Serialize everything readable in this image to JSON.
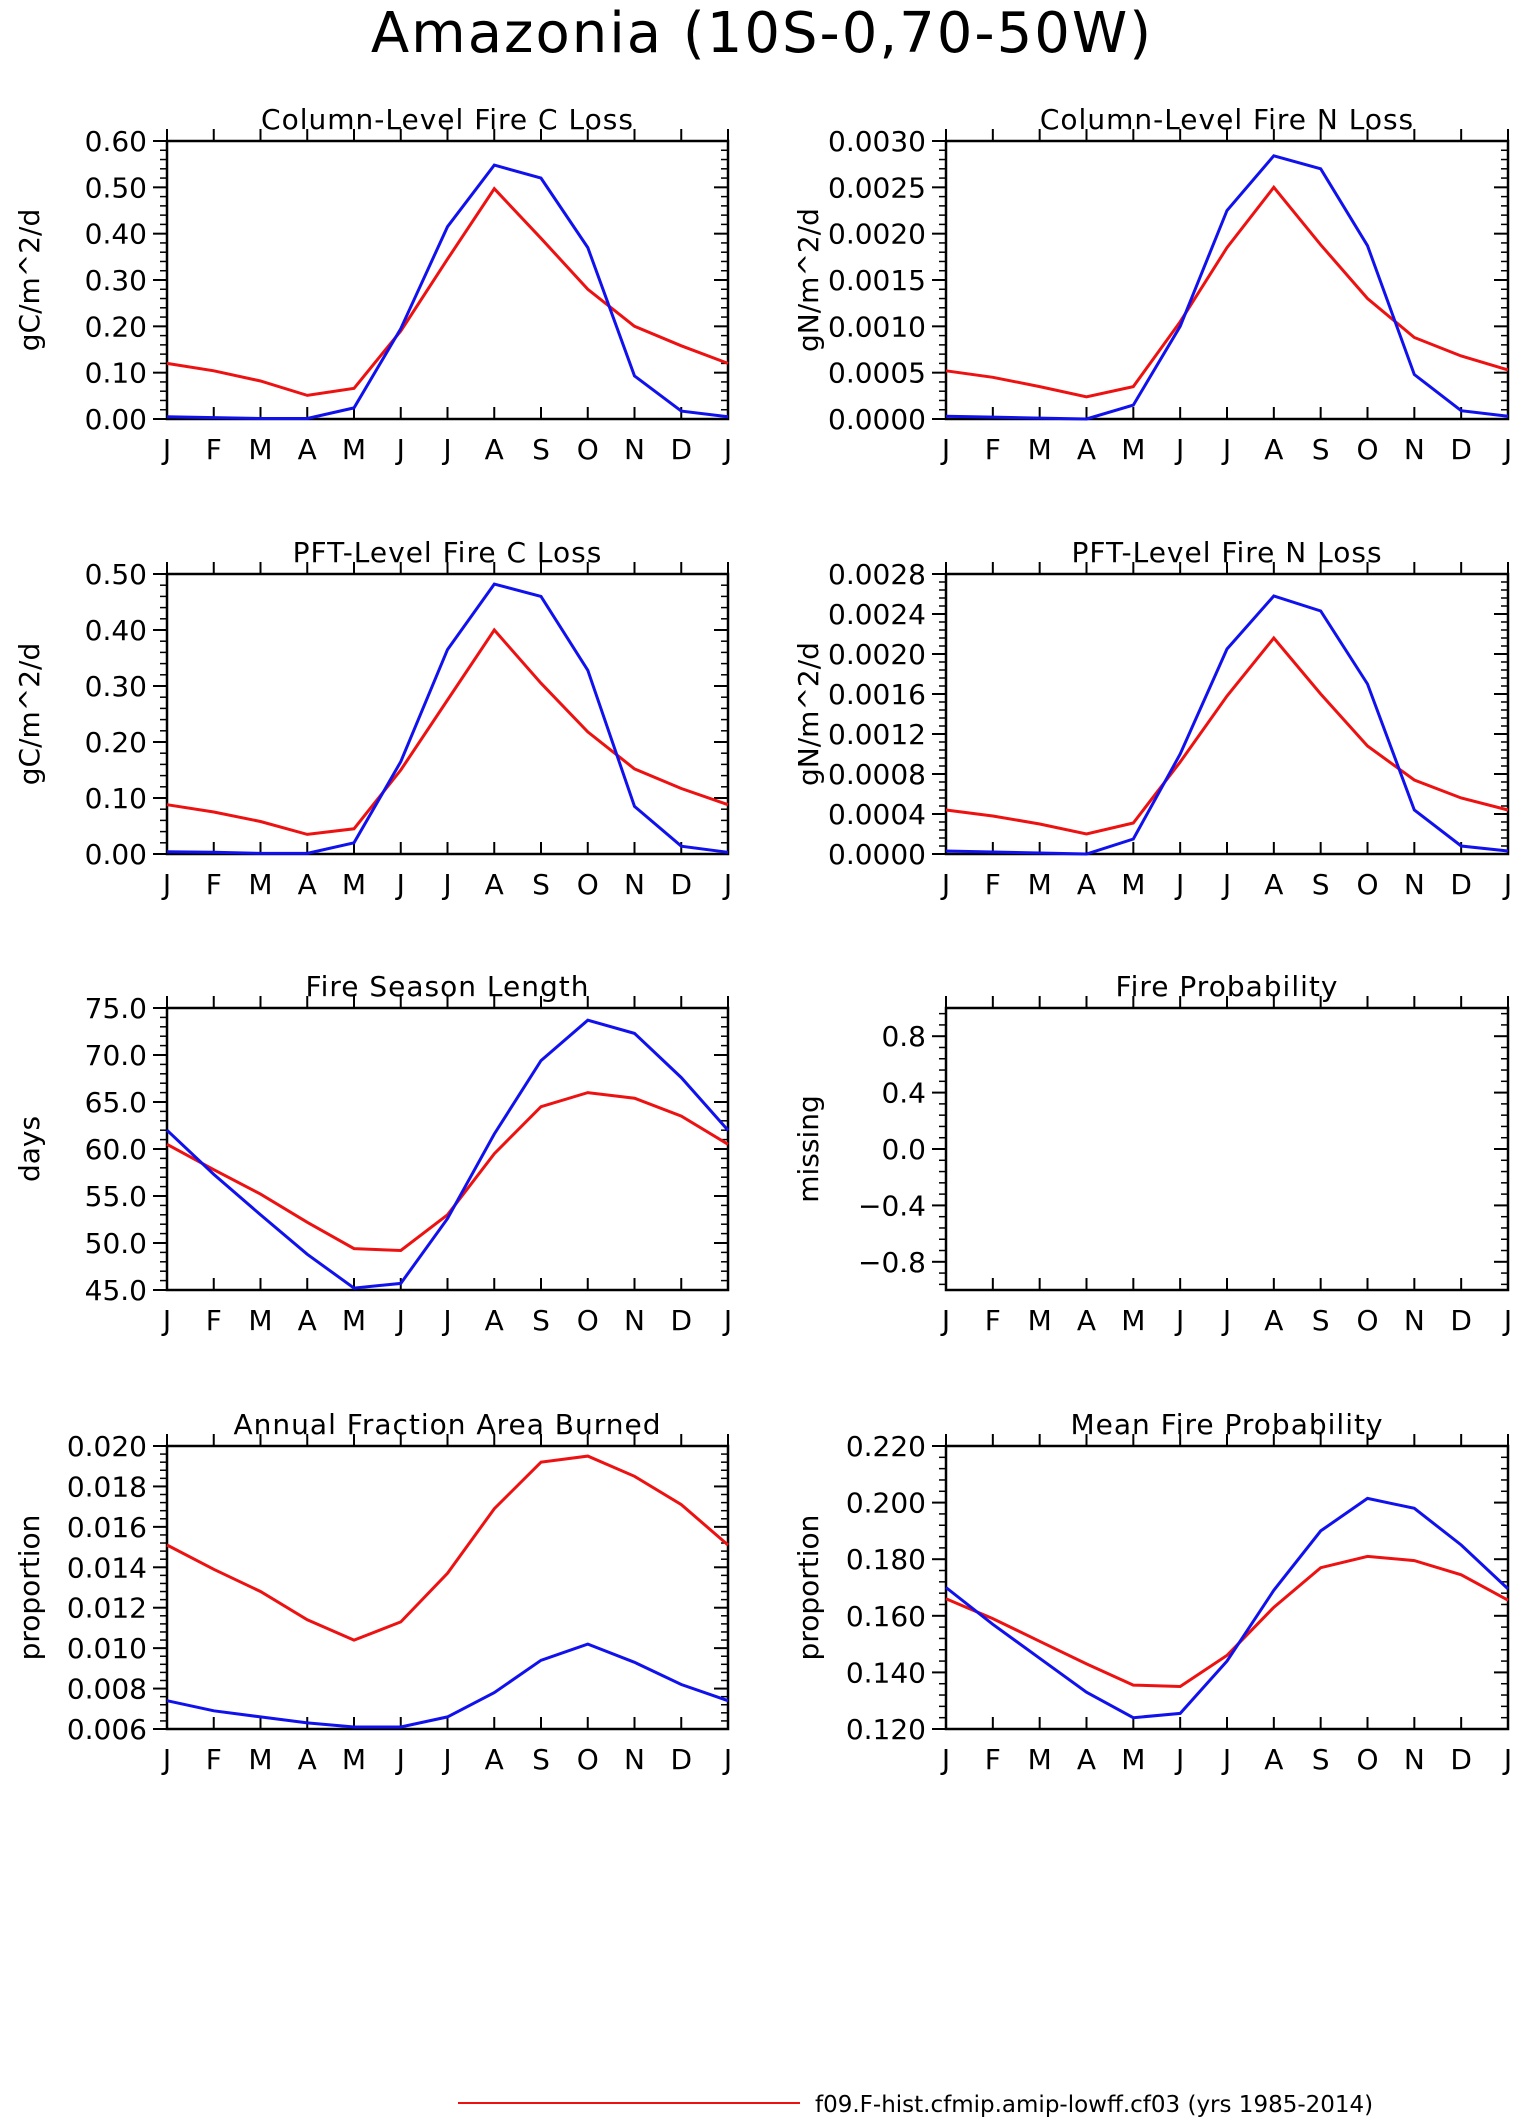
{
  "figure": {
    "title": "Amazonia (10S-0,70-50W)",
    "legend": [
      {
        "label": "f09.F-hist.cfmip.amip-lowff.cf03 (yrs 1985-2014)",
        "color": "#ee1111"
      }
    ]
  },
  "chart_data": [
    {
      "type": "line",
      "title": "Column-Level Fire C Loss",
      "ylabel": "gC/m^2/d",
      "categories": [
        "J",
        "F",
        "M",
        "A",
        "M",
        "J",
        "J",
        "A",
        "S",
        "O",
        "N",
        "D",
        "J"
      ],
      "ylim": [
        0,
        0.6
      ],
      "yticks": [
        "0.00",
        "0.10",
        "0.20",
        "0.30",
        "0.40",
        "0.50",
        "0.60"
      ],
      "series": [
        {
          "color": "#ee1111",
          "values": [
            0.12,
            0.104,
            0.082,
            0.051,
            0.066,
            0.19,
            0.345,
            0.497,
            0.39,
            0.28,
            0.2,
            0.158,
            0.12
          ]
        },
        {
          "color": "#1111ee",
          "values": [
            0.005,
            0.003,
            0.001,
            0.001,
            0.024,
            0.195,
            0.415,
            0.548,
            0.52,
            0.37,
            0.093,
            0.017,
            0.005
          ]
        }
      ]
    },
    {
      "type": "line",
      "title": "Column-Level Fire N Loss",
      "ylabel": "gN/m^2/d",
      "categories": [
        "J",
        "F",
        "M",
        "A",
        "M",
        "J",
        "J",
        "A",
        "S",
        "O",
        "N",
        "D",
        "J"
      ],
      "ylim": [
        0,
        0.003
      ],
      "yticks": [
        "0.0000",
        "0.0005",
        "0.0010",
        "0.0015",
        "0.0020",
        "0.0025",
        "0.0030"
      ],
      "series": [
        {
          "color": "#ee1111",
          "values": [
            0.00052,
            0.00045,
            0.00035,
            0.00024,
            0.00035,
            0.00105,
            0.00185,
            0.0025,
            0.00188,
            0.0013,
            0.00088,
            0.00068,
            0.00053
          ]
        },
        {
          "color": "#1111ee",
          "values": [
            3e-05,
            2e-05,
            1e-05,
            0.0,
            0.00015,
            0.001,
            0.00225,
            0.00284,
            0.0027,
            0.00187,
            0.00048,
            9e-05,
            3e-05
          ]
        }
      ]
    },
    {
      "type": "line",
      "title": "PFT-Level Fire C Loss",
      "ylabel": "gC/m^2/d",
      "categories": [
        "J",
        "F",
        "M",
        "A",
        "M",
        "J",
        "J",
        "A",
        "S",
        "O",
        "N",
        "D",
        "J"
      ],
      "ylim": [
        0,
        0.5
      ],
      "yticks": [
        "0.00",
        "0.10",
        "0.20",
        "0.30",
        "0.40",
        "0.50"
      ],
      "series": [
        {
          "color": "#ee1111",
          "values": [
            0.088,
            0.075,
            0.058,
            0.035,
            0.045,
            0.15,
            0.275,
            0.4,
            0.305,
            0.218,
            0.152,
            0.117,
            0.088
          ]
        },
        {
          "color": "#1111ee",
          "values": [
            0.004,
            0.003,
            0.001,
            0.001,
            0.02,
            0.165,
            0.365,
            0.482,
            0.46,
            0.328,
            0.085,
            0.014,
            0.003
          ]
        }
      ]
    },
    {
      "type": "line",
      "title": "PFT-Level Fire N Loss",
      "ylabel": "gN/m^2/d",
      "categories": [
        "J",
        "F",
        "M",
        "A",
        "M",
        "J",
        "J",
        "A",
        "S",
        "O",
        "N",
        "D",
        "J"
      ],
      "ylim": [
        0,
        0.0028
      ],
      "yticks": [
        "0.0000",
        "0.0004",
        "0.0008",
        "0.0012",
        "0.0016",
        "0.0020",
        "0.0024",
        "0.0028"
      ],
      "series": [
        {
          "color": "#ee1111",
          "values": [
            0.00044,
            0.00038,
            0.0003,
            0.0002,
            0.00031,
            0.00092,
            0.00158,
            0.00216,
            0.0016,
            0.00108,
            0.00074,
            0.00056,
            0.00044
          ]
        },
        {
          "color": "#1111ee",
          "values": [
            3e-05,
            2e-05,
            1e-05,
            0.0,
            0.00015,
            0.001,
            0.00205,
            0.00258,
            0.00243,
            0.0017,
            0.00044,
            8e-05,
            3e-05
          ]
        }
      ]
    },
    {
      "type": "line",
      "title": "Fire Season Length",
      "ylabel": "days",
      "categories": [
        "J",
        "F",
        "M",
        "A",
        "M",
        "J",
        "J",
        "A",
        "S",
        "O",
        "N",
        "D",
        "J"
      ],
      "ylim": [
        45,
        75
      ],
      "yticks": [
        "45.0",
        "50.0",
        "55.0",
        "60.0",
        "65.0",
        "70.0",
        "75.0"
      ],
      "series": [
        {
          "color": "#ee1111",
          "values": [
            60.5,
            57.8,
            55.2,
            52.2,
            49.4,
            49.2,
            53.0,
            59.5,
            64.5,
            66.0,
            65.4,
            63.5,
            60.5
          ]
        },
        {
          "color": "#1111ee",
          "values": [
            62.0,
            57.3,
            53.0,
            48.8,
            45.2,
            45.7,
            52.6,
            61.6,
            69.4,
            73.7,
            72.3,
            67.6,
            62.0
          ]
        }
      ]
    },
    {
      "type": "line",
      "title": "Fire Probability",
      "ylabel": "missing",
      "categories": [
        "J",
        "F",
        "M",
        "A",
        "M",
        "J",
        "J",
        "A",
        "S",
        "O",
        "N",
        "D",
        "J"
      ],
      "ylim": [
        -1,
        1
      ],
      "yticks": [
        "-0.8",
        "-0.4",
        "0.0",
        "0.4",
        "0.8"
      ],
      "series": []
    },
    {
      "type": "line",
      "title": "Annual Fraction Area Burned",
      "ylabel": "proportion",
      "categories": [
        "J",
        "F",
        "M",
        "A",
        "M",
        "J",
        "J",
        "A",
        "S",
        "O",
        "N",
        "D",
        "J"
      ],
      "ylim": [
        0.006,
        0.02
      ],
      "yticks": [
        "0.006",
        "0.008",
        "0.010",
        "0.012",
        "0.014",
        "0.016",
        "0.018",
        "0.020"
      ],
      "series": [
        {
          "color": "#ee1111",
          "values": [
            0.0151,
            0.0139,
            0.0128,
            0.0114,
            0.0104,
            0.0113,
            0.0137,
            0.0169,
            0.0192,
            0.0195,
            0.0185,
            0.0171,
            0.0151
          ]
        },
        {
          "color": "#1111ee",
          "values": [
            0.0074,
            0.0069,
            0.0066,
            0.0063,
            0.0061,
            0.0061,
            0.0066,
            0.0078,
            0.0094,
            0.0102,
            0.0093,
            0.0082,
            0.0074
          ]
        }
      ]
    },
    {
      "type": "line",
      "title": "Mean Fire Probability",
      "ylabel": "proportion",
      "categories": [
        "J",
        "F",
        "M",
        "A",
        "M",
        "J",
        "J",
        "A",
        "S",
        "O",
        "N",
        "D",
        "J"
      ],
      "ylim": [
        0.12,
        0.22
      ],
      "yticks": [
        "0.120",
        "0.140",
        "0.160",
        "0.180",
        "0.200",
        "0.220"
      ],
      "series": [
        {
          "color": "#ee1111",
          "values": [
            0.166,
            0.159,
            0.151,
            0.143,
            0.1355,
            0.135,
            0.146,
            0.163,
            0.177,
            0.181,
            0.1795,
            0.1745,
            0.1655
          ]
        },
        {
          "color": "#1111ee",
          "values": [
            0.17,
            0.157,
            0.145,
            0.133,
            0.124,
            0.1255,
            0.144,
            0.169,
            0.19,
            0.2015,
            0.198,
            0.185,
            0.1695
          ]
        }
      ]
    }
  ]
}
